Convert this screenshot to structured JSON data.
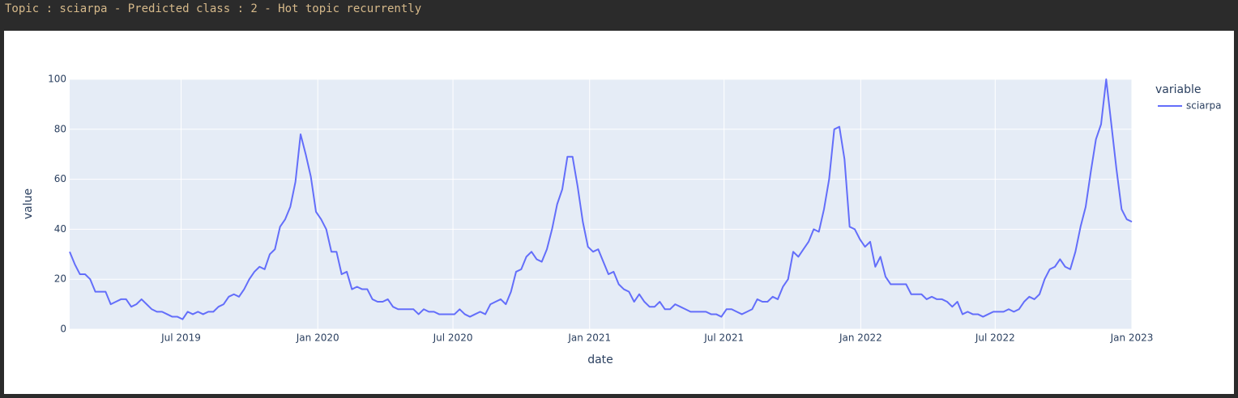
{
  "header": {
    "title": "Topic : sciarpa - Predicted class : 2 - Hot topic recurrently"
  },
  "chart_data": {
    "type": "line",
    "x_label": "date",
    "y_label": "value",
    "legend_title": "variable",
    "legend": "upper right outside",
    "grid": true,
    "xlim": [
      "2019-02",
      "2023-01"
    ],
    "xticks": [
      {
        "value": "2019-07",
        "label": "Jul 2019"
      },
      {
        "value": "2020-01",
        "label": "Jan 2020"
      },
      {
        "value": "2020-07",
        "label": "Jul 2020"
      },
      {
        "value": "2021-01",
        "label": "Jan 2021"
      },
      {
        "value": "2021-07",
        "label": "Jul 2021"
      },
      {
        "value": "2022-01",
        "label": "Jan 2022"
      },
      {
        "value": "2022-07",
        "label": "Jul 2022"
      },
      {
        "value": "2023-01",
        "label": "Jan 2023"
      }
    ],
    "ylim": [
      0,
      100
    ],
    "yticks": [
      0,
      20,
      40,
      60,
      80,
      100
    ],
    "series": [
      {
        "name": "sciarpa",
        "color": "#636efa",
        "values": [
          31,
          26,
          22,
          22,
          20,
          15,
          15,
          15,
          10,
          11,
          12,
          12,
          9,
          10,
          12,
          10,
          8,
          7,
          7,
          6,
          5,
          5,
          4,
          7,
          6,
          7,
          6,
          7,
          7,
          9,
          10,
          13,
          14,
          13,
          16,
          20,
          23,
          25,
          24,
          30,
          32,
          41,
          44,
          49,
          59,
          78,
          70,
          61,
          47,
          44,
          40,
          31,
          31,
          22,
          23,
          16,
          17,
          16,
          16,
          12,
          11,
          11,
          12,
          9,
          8,
          8,
          8,
          8,
          6,
          8,
          7,
          7,
          6,
          6,
          6,
          6,
          8,
          6,
          5,
          6,
          7,
          6,
          10,
          11,
          12,
          10,
          15,
          23,
          24,
          29,
          31,
          28,
          27,
          32,
          40,
          50,
          56,
          69,
          69,
          57,
          43,
          33,
          31,
          32,
          27,
          22,
          23,
          18,
          16,
          15,
          11,
          14,
          11,
          9,
          9,
          11,
          8,
          8,
          10,
          9,
          8,
          7,
          7,
          7,
          7,
          6,
          6,
          5,
          8,
          8,
          7,
          6,
          7,
          8,
          12,
          11,
          11,
          13,
          12,
          17,
          20,
          31,
          29,
          32,
          35,
          40,
          39,
          48,
          60,
          80,
          81,
          68,
          41,
          40,
          36,
          33,
          35,
          25,
          29,
          21,
          18,
          18,
          18,
          18,
          14,
          14,
          14,
          12,
          13,
          12,
          12,
          11,
          9,
          11,
          6,
          7,
          6,
          6,
          5,
          6,
          7,
          7,
          7,
          8,
          7,
          8,
          11,
          13,
          12,
          14,
          20,
          24,
          25,
          28,
          25,
          24,
          31,
          41,
          49,
          63,
          76,
          82,
          100,
          82,
          64,
          48,
          44,
          43
        ]
      }
    ]
  }
}
